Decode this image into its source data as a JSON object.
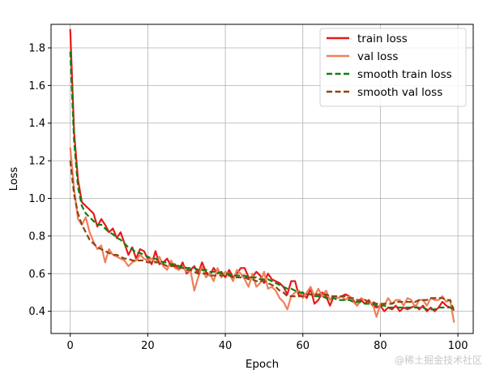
{
  "chart_data": {
    "type": "line",
    "title": "",
    "xlabel": "Epoch",
    "ylabel": "Loss",
    "xlim": [
      -4.95,
      103.95
    ],
    "ylim": [
      0.282,
      1.925
    ],
    "xticks": [
      0,
      20,
      40,
      60,
      80,
      100
    ],
    "yticks": [
      0.4,
      0.6,
      0.8,
      1.0,
      1.2,
      1.4,
      1.6,
      1.8
    ],
    "grid": true,
    "legend_position": "top-right",
    "series": [
      {
        "name": "train loss",
        "color": "#e8191b",
        "style": "solid",
        "values": [
          1.9,
          1.35,
          1.1,
          0.98,
          0.96,
          0.94,
          0.92,
          0.85,
          0.89,
          0.86,
          0.82,
          0.84,
          0.79,
          0.82,
          0.76,
          0.7,
          0.74,
          0.68,
          0.73,
          0.72,
          0.68,
          0.65,
          0.72,
          0.65,
          0.66,
          0.68,
          0.64,
          0.65,
          0.62,
          0.66,
          0.6,
          0.62,
          0.64,
          0.6,
          0.66,
          0.61,
          0.59,
          0.63,
          0.6,
          0.61,
          0.58,
          0.62,
          0.58,
          0.6,
          0.63,
          0.63,
          0.58,
          0.58,
          0.61,
          0.59,
          0.55,
          0.6,
          0.57,
          0.56,
          0.55,
          0.53,
          0.49,
          0.56,
          0.56,
          0.48,
          0.5,
          0.47,
          0.52,
          0.44,
          0.46,
          0.5,
          0.48,
          0.43,
          0.48,
          0.47,
          0.48,
          0.49,
          0.48,
          0.46,
          0.43,
          0.46,
          0.44,
          0.46,
          0.43,
          0.42,
          0.43,
          0.4,
          0.42,
          0.41,
          0.43,
          0.4,
          0.42,
          0.41,
          0.42,
          0.43,
          0.41,
          0.43,
          0.4,
          0.42,
          0.4,
          0.42,
          0.45,
          0.43,
          0.42,
          0.42
        ]
      },
      {
        "name": "val loss",
        "color": "#f07f5a",
        "style": "solid",
        "values": [
          1.27,
          1.05,
          0.89,
          0.86,
          0.9,
          0.82,
          0.77,
          0.73,
          0.75,
          0.66,
          0.73,
          0.7,
          0.69,
          0.68,
          0.67,
          0.64,
          0.66,
          0.67,
          0.7,
          0.68,
          0.67,
          0.68,
          0.66,
          0.69,
          0.64,
          0.62,
          0.67,
          0.63,
          0.62,
          0.64,
          0.61,
          0.62,
          0.51,
          0.58,
          0.64,
          0.58,
          0.6,
          0.56,
          0.63,
          0.58,
          0.61,
          0.6,
          0.56,
          0.62,
          0.6,
          0.57,
          0.53,
          0.6,
          0.53,
          0.55,
          0.61,
          0.52,
          0.53,
          0.51,
          0.47,
          0.45,
          0.41,
          0.48,
          0.5,
          0.51,
          0.47,
          0.5,
          0.53,
          0.48,
          0.52,
          0.48,
          0.51,
          0.46,
          0.48,
          0.47,
          0.48,
          0.46,
          0.48,
          0.45,
          0.43,
          0.47,
          0.46,
          0.45,
          0.44,
          0.37,
          0.44,
          0.43,
          0.47,
          0.44,
          0.46,
          0.46,
          0.43,
          0.47,
          0.46,
          0.42,
          0.46,
          0.46,
          0.43,
          0.47,
          0.46,
          0.46,
          0.48,
          0.45,
          0.46,
          0.34
        ]
      },
      {
        "name": "smooth train loss",
        "color": "#108010",
        "style": "dashed",
        "values": [
          1.78,
          1.3,
          1.06,
          0.96,
          0.92,
          0.9,
          0.88,
          0.86,
          0.86,
          0.84,
          0.82,
          0.81,
          0.79,
          0.78,
          0.76,
          0.74,
          0.73,
          0.71,
          0.71,
          0.7,
          0.69,
          0.68,
          0.68,
          0.67,
          0.66,
          0.66,
          0.65,
          0.65,
          0.64,
          0.64,
          0.63,
          0.63,
          0.63,
          0.62,
          0.62,
          0.62,
          0.61,
          0.61,
          0.61,
          0.6,
          0.6,
          0.6,
          0.59,
          0.59,
          0.59,
          0.59,
          0.58,
          0.58,
          0.58,
          0.57,
          0.57,
          0.57,
          0.56,
          0.55,
          0.54,
          0.53,
          0.52,
          0.52,
          0.51,
          0.5,
          0.5,
          0.49,
          0.49,
          0.48,
          0.48,
          0.48,
          0.47,
          0.47,
          0.47,
          0.46,
          0.46,
          0.46,
          0.46,
          0.45,
          0.45,
          0.45,
          0.44,
          0.44,
          0.44,
          0.43,
          0.43,
          0.43,
          0.42,
          0.42,
          0.42,
          0.42,
          0.42,
          0.42,
          0.42,
          0.42,
          0.42,
          0.42,
          0.41,
          0.41,
          0.41,
          0.42,
          0.42,
          0.42,
          0.42,
          0.41
        ]
      },
      {
        "name": "smooth val loss",
        "color": "#8b4513",
        "style": "dashed",
        "values": [
          1.2,
          1.02,
          0.92,
          0.86,
          0.82,
          0.78,
          0.76,
          0.74,
          0.73,
          0.72,
          0.71,
          0.7,
          0.7,
          0.69,
          0.68,
          0.68,
          0.67,
          0.67,
          0.67,
          0.67,
          0.66,
          0.66,
          0.66,
          0.66,
          0.65,
          0.64,
          0.64,
          0.64,
          0.63,
          0.63,
          0.62,
          0.62,
          0.61,
          0.6,
          0.6,
          0.6,
          0.59,
          0.59,
          0.59,
          0.59,
          0.59,
          0.59,
          0.58,
          0.58,
          0.58,
          0.58,
          0.57,
          0.57,
          0.56,
          0.56,
          0.56,
          0.55,
          0.54,
          0.53,
          0.51,
          0.5,
          0.48,
          0.48,
          0.48,
          0.48,
          0.48,
          0.49,
          0.49,
          0.49,
          0.49,
          0.49,
          0.49,
          0.48,
          0.48,
          0.48,
          0.48,
          0.48,
          0.47,
          0.47,
          0.46,
          0.46,
          0.46,
          0.45,
          0.45,
          0.44,
          0.44,
          0.44,
          0.44,
          0.44,
          0.45,
          0.45,
          0.45,
          0.45,
          0.45,
          0.45,
          0.46,
          0.46,
          0.46,
          0.47,
          0.47,
          0.47,
          0.47,
          0.46,
          0.46,
          0.4
        ]
      }
    ]
  },
  "watermark": "@稀土掘金技术社区"
}
